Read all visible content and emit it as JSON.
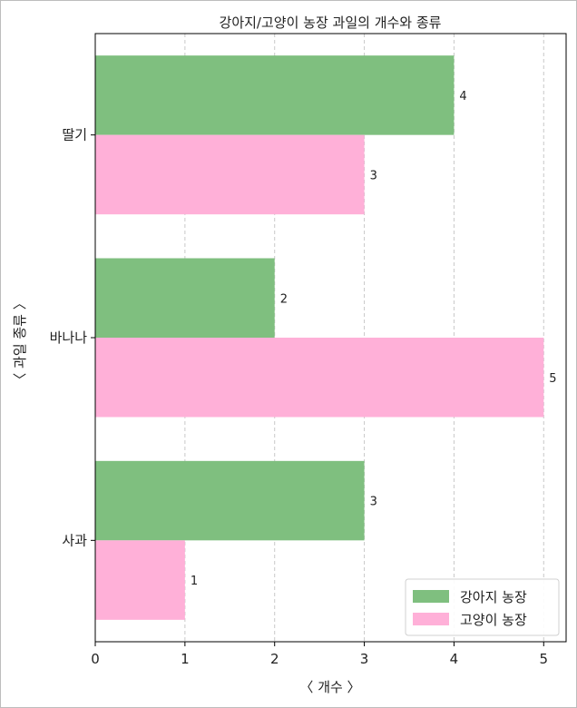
{
  "chart_data": {
    "type": "bar",
    "orientation": "horizontal",
    "title": "강아지/고양이 농장 과일의 개수와 종류",
    "xlabel": "〈 개수 〉",
    "ylabel": "〈 과일 종류 〉",
    "categories": [
      "사과",
      "바나나",
      "딸기"
    ],
    "series": [
      {
        "name": "강아지 농장",
        "values": [
          3,
          2,
          4
        ],
        "color": "#7fbf7f"
      },
      {
        "name": "고양이 농장",
        "values": [
          1,
          5,
          3
        ],
        "color": "#ffb0d8"
      }
    ],
    "xlim": [
      0,
      5.25
    ],
    "xticks": [
      "0",
      "1",
      "2",
      "3",
      "4",
      "5"
    ],
    "grid": "x, dashed",
    "legend": "lower-right",
    "value_labels": true
  }
}
